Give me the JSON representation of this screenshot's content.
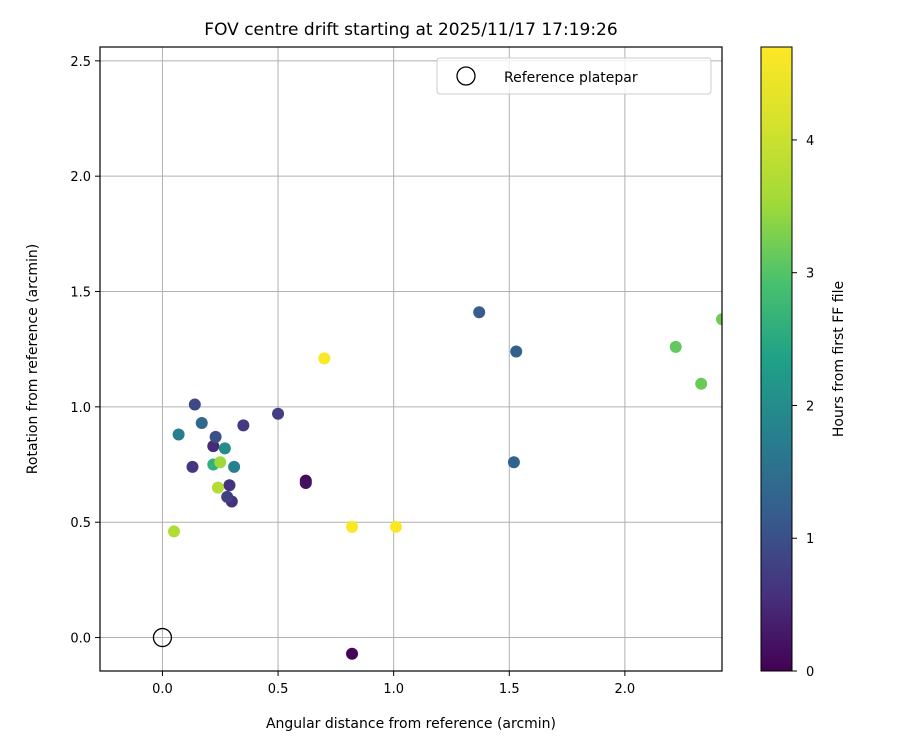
{
  "chart_data": {
    "type": "scatter",
    "title": "FOV centre drift starting at 2025/11/17 17:19:26",
    "xlabel": "Angular distance from reference (arcmin)",
    "ylabel": "Rotation from reference (arcmin)",
    "xlim": [
      -0.27,
      2.42
    ],
    "ylim": [
      -0.145,
      2.56
    ],
    "xticks": [
      0.0,
      0.5,
      1.0,
      1.5,
      2.0
    ],
    "xtick_labels": [
      "0.0",
      "0.5",
      "1.0",
      "1.5",
      "2.0"
    ],
    "yticks": [
      0.0,
      0.5,
      1.0,
      1.5,
      2.0,
      2.5
    ],
    "ytick_labels": [
      "0.0",
      "0.5",
      "1.0",
      "1.5",
      "2.0",
      "2.5"
    ],
    "grid": true,
    "legend": {
      "position": "top-right",
      "entries": [
        "Reference platepar"
      ]
    },
    "reference_point": {
      "x": 0.0,
      "y": 0.0,
      "label": "Reference platepar"
    },
    "colorbar": {
      "label": "Hours from first FF file",
      "min": 0,
      "max": 4.7,
      "ticks": [
        0,
        1,
        2,
        3,
        4
      ],
      "tick_labels": [
        "0",
        "1",
        "2",
        "3",
        "4"
      ],
      "colormap": "viridis"
    },
    "points": [
      {
        "x": 0.82,
        "y": -0.07,
        "hours": 0.05
      },
      {
        "x": 0.62,
        "y": 0.68,
        "hours": 0.1
      },
      {
        "x": 0.62,
        "y": 0.67,
        "hours": 0.15
      },
      {
        "x": 0.22,
        "y": 0.83,
        "hours": 0.5
      },
      {
        "x": 0.3,
        "y": 0.59,
        "hours": 0.55
      },
      {
        "x": 0.29,
        "y": 0.66,
        "hours": 0.6
      },
      {
        "x": 0.13,
        "y": 0.74,
        "hours": 0.65
      },
      {
        "x": 0.35,
        "y": 0.92,
        "hours": 0.7
      },
      {
        "x": 0.5,
        "y": 0.97,
        "hours": 0.75
      },
      {
        "x": 0.28,
        "y": 0.61,
        "hours": 0.8
      },
      {
        "x": 0.14,
        "y": 1.01,
        "hours": 0.9
      },
      {
        "x": 0.23,
        "y": 0.87,
        "hours": 1.0
      },
      {
        "x": 1.37,
        "y": 1.41,
        "hours": 1.2
      },
      {
        "x": 1.53,
        "y": 1.24,
        "hours": 1.25
      },
      {
        "x": 1.52,
        "y": 0.76,
        "hours": 1.3
      },
      {
        "x": 0.17,
        "y": 0.93,
        "hours": 1.4
      },
      {
        "x": 0.07,
        "y": 0.88,
        "hours": 1.75
      },
      {
        "x": 0.31,
        "y": 0.74,
        "hours": 1.8
      },
      {
        "x": 0.27,
        "y": 0.82,
        "hours": 2.0
      },
      {
        "x": 0.22,
        "y": 0.75,
        "hours": 2.6
      },
      {
        "x": 2.22,
        "y": 1.26,
        "hours": 3.1
      },
      {
        "x": 2.33,
        "y": 1.1,
        "hours": 3.15
      },
      {
        "x": 2.42,
        "y": 1.38,
        "hours": 3.2
      },
      {
        "x": 0.25,
        "y": 0.76,
        "hours": 3.5
      },
      {
        "x": 0.05,
        "y": 0.46,
        "hours": 3.7
      },
      {
        "x": 0.24,
        "y": 0.65,
        "hours": 3.75
      },
      {
        "x": 0.7,
        "y": 1.21,
        "hours": 4.65
      },
      {
        "x": 0.82,
        "y": 0.48,
        "hours": 4.65
      },
      {
        "x": 1.01,
        "y": 0.48,
        "hours": 4.7
      }
    ]
  }
}
